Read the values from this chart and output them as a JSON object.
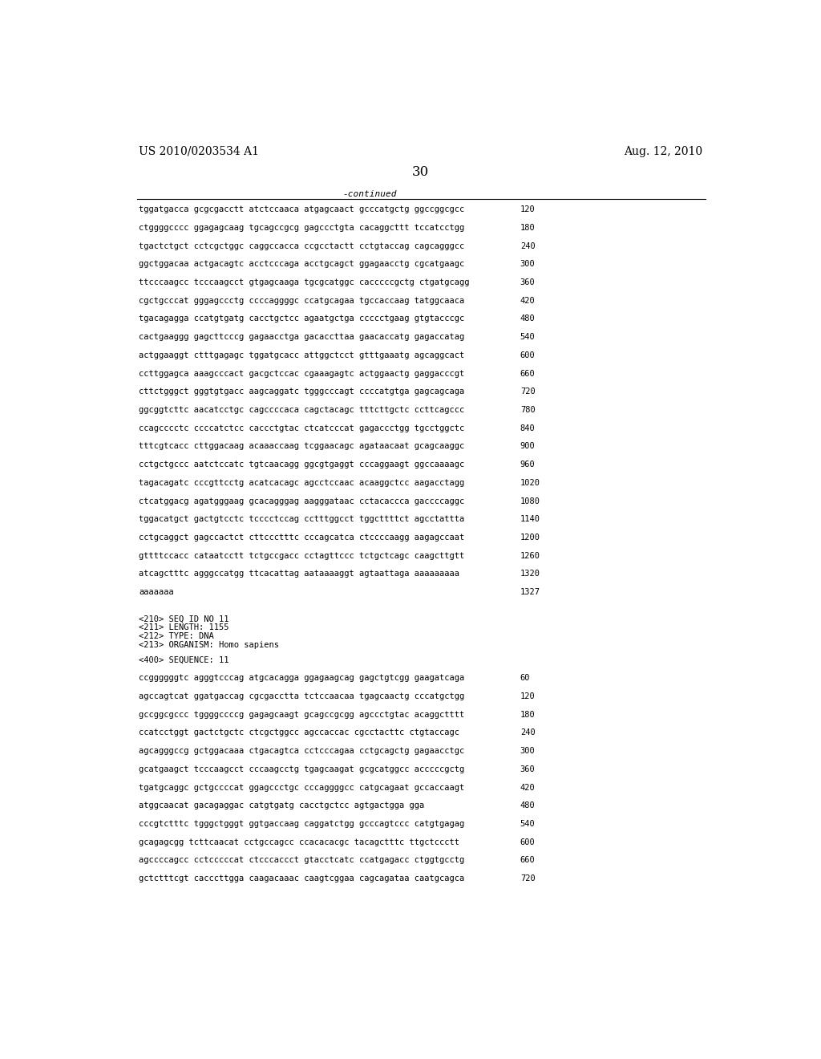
{
  "header_left": "US 2010/0203534 A1",
  "header_right": "Aug. 12, 2010",
  "page_number": "30",
  "continued_label": "-continued",
  "background_color": "#ffffff",
  "text_color": "#000000",
  "font_size": 7.5,
  "header_font_size": 10,
  "sequence_lines_top": [
    [
      "tggatgacca gcgcgacctt atctccaaca atgagcaact gcccatgctg ggccggcgcc",
      "120"
    ],
    [
      "ctggggcccc ggagagcaag tgcagccgcg gagccctgta cacaggcttt tccatcctgg",
      "180"
    ],
    [
      "tgactctgct cctcgctggc caggccacca ccgcctactt cctgtaccag cagcagggcc",
      "240"
    ],
    [
      "ggctggacaa actgacagtc acctcccaga acctgcagct ggagaacctg cgcatgaagc",
      "300"
    ],
    [
      "ttcccaagcc tcccaagcct gtgagcaaga tgcgcatggc cacccccgctg ctgatgcagg",
      "360"
    ],
    [
      "cgctgcccat gggagccctg ccccaggggc ccatgcagaa tgccaccaag tatggcaaca",
      "420"
    ],
    [
      "tgacagagga ccatgtgatg cacctgctcc agaatgctga ccccctgaag gtgtacccgc",
      "480"
    ],
    [
      "cactgaaggg gagcttcccg gagaacctga gacaccttaa gaacaccatg gagaccatag",
      "540"
    ],
    [
      "actggaaggt ctttgagagc tggatgcacc attggctcct gtttgaaatg agcaggcact",
      "600"
    ],
    [
      "ccttggagca aaagcccact gacgctccac cgaaagagtc actggaactg gaggacccgt",
      "660"
    ],
    [
      "cttctgggct gggtgtgacc aagcaggatc tgggcccagt ccccatgtga gagcagcaga",
      "720"
    ],
    [
      "ggcggtcttc aacatcctgc cagccccaca cagctacagc tttcttgctc ccttcagccc",
      "780"
    ],
    [
      "ccagcccctc ccccatctcc caccctgtac ctcatcccat gagaccctgg tgcctggctc",
      "840"
    ],
    [
      "tttcgtcacc cttggacaag acaaaccaag tcggaacagc agataacaat gcagcaaggc",
      "900"
    ],
    [
      "cctgctgccc aatctccatc tgtcaacagg ggcgtgaggt cccaggaagt ggccaaaagc",
      "960"
    ],
    [
      "tagacagatc cccgttcctg acatcacagc agcctccaac acaaggctcc aagacctagg",
      "1020"
    ],
    [
      "ctcatggacg agatgggaag gcacagggag aagggataac cctacaccca gaccccaggc",
      "1080"
    ],
    [
      "tggacatgct gactgtcctc tcccctccag cctttggcct tggcttttct agcctattta",
      "1140"
    ],
    [
      "cctgcaggct gagccactct cttccctttc cccagcatca ctccccaagg aagagccaat",
      "1200"
    ],
    [
      "gttttccacc cataatcctt tctgccgacc cctagttccc tctgctcagc caagcttgtt",
      "1260"
    ],
    [
      "atcagctttc agggccatgg ttcacattag aataaaaggt agtaattaga aaaaaaaaa",
      "1320"
    ],
    [
      "aaaaaaa",
      "1327"
    ]
  ],
  "metadata_block": [
    "<210> SEQ ID NO 11",
    "<211> LENGTH: 1155",
    "<212> TYPE: DNA",
    "<213> ORGANISM: Homo sapiens"
  ],
  "sequence_label": "<400> SEQUENCE: 11",
  "sequence_lines_bottom": [
    [
      "ccggggggtc agggtcccag atgcacagga ggagaagcag gagctgtcgg gaagatcaga",
      "60"
    ],
    [
      "agccagtcat ggatgaccag cgcgacctta tctccaacaa tgagcaactg cccatgctgg",
      "120"
    ],
    [
      "gccggcgccc tggggccccg gagagcaagt gcagccgcgg agccctgtac acaggctttt",
      "180"
    ],
    [
      "ccatcctggt gactctgctc ctcgctggcc agccaccac cgcctacttc ctgtaccagc",
      "240"
    ],
    [
      "agcagggccg gctggacaaa ctgacagtca cctcccagaa cctgcagctg gagaacctgc",
      "300"
    ],
    [
      "gcatgaagct tcccaagcct cccaagcctg tgagcaagat gcgcatggcc acccccgctg",
      "360"
    ],
    [
      "tgatgcaggc gctgccccat ggagccctgc cccaggggcc catgcagaat gccaccaagt",
      "420"
    ],
    [
      "atggcaacat gacagaggac catgtgatg cacctgctcc agtgactgga gga",
      "480"
    ],
    [
      "cccgtctttc tgggctgggt ggtgaccaag caggatctgg gcccagtccc catgtgagag",
      "540"
    ],
    [
      "gcagagcgg tcttcaacat cctgccagcc ccacacacgc tacagctttc ttgctccctt",
      "600"
    ],
    [
      "agccccagcc cctcccccat ctcccaccct gtacctcatc ccatgagacc ctggtgcctg",
      "660"
    ],
    [
      "gctctttcgt cacccttgga caagacaaac caagtcggaa cagcagataa caatgcagca",
      "720"
    ]
  ]
}
